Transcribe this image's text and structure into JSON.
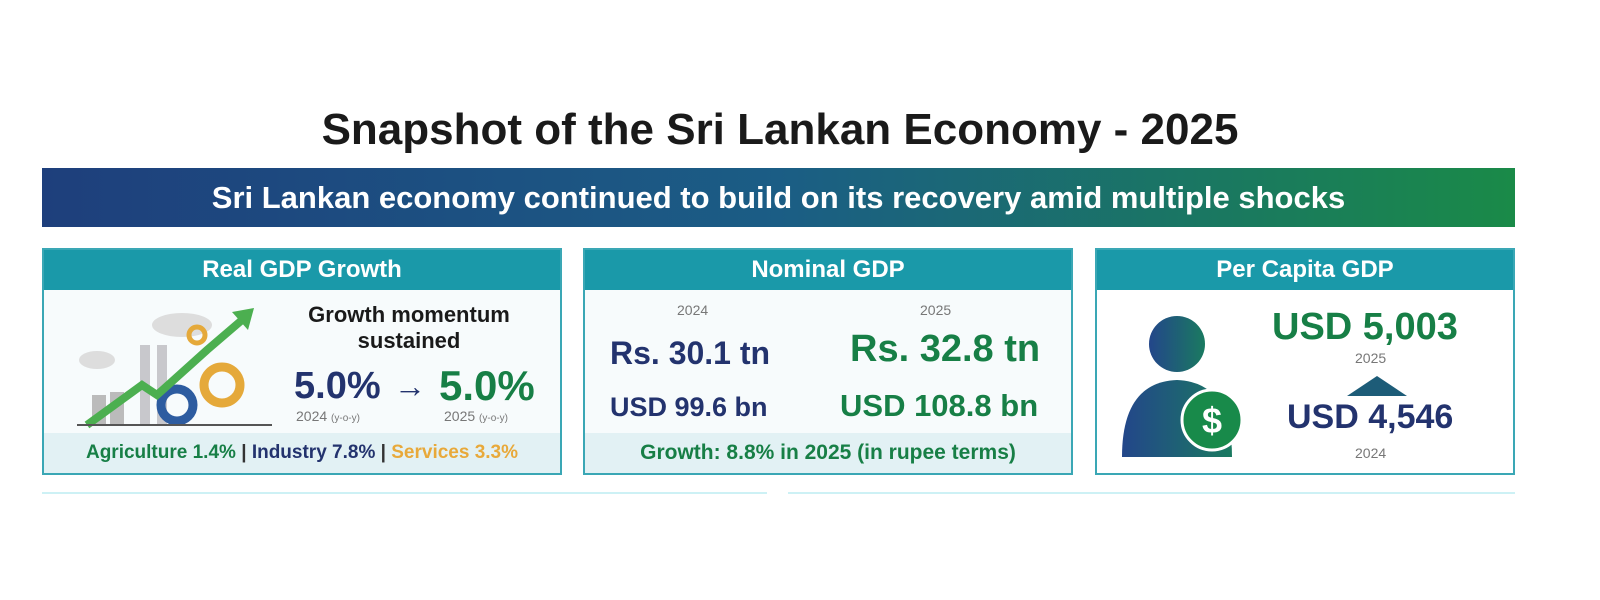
{
  "title": "Snapshot of the Sri Lankan Economy - 2025",
  "banner": "Sri Lankan economy continued to build on its recovery amid multiple shocks",
  "real_gdp": {
    "header": "Real GDP Growth",
    "headline_1": "Growth momentum",
    "headline_2": "sustained",
    "value_2024": "5.0%",
    "arrow": "→",
    "value_2025": "5.0%",
    "label_2024": "2024",
    "label_2025": "2025",
    "yoy": "(y-o-y)",
    "sectors": {
      "agriculture": "Agriculture 1.4%",
      "industry": "Industry 7.8%",
      "services": "Services 3.3%",
      "sep": "|"
    }
  },
  "nominal_gdp": {
    "header": "Nominal GDP",
    "year_2024": "2024",
    "year_2025": "2025",
    "rs_2024": "Rs. 30.1 tn",
    "rs_2025": "Rs. 32.8 tn",
    "usd_2024": "USD 99.6 bn",
    "usd_2025": "USD 108.8 bn",
    "growth": "Growth: 8.8% in 2025 (in rupee terms)"
  },
  "per_capita": {
    "header": "Per Capita GDP",
    "value_2025": "USD 5,003",
    "year_2025": "2025",
    "value_2024": "USD 4,546",
    "year_2024": "2024",
    "dollar": "$"
  },
  "colors": {
    "navy": "#23336e",
    "green": "#177f46",
    "teal": "#1a99a9",
    "orange": "#e8a93a"
  }
}
